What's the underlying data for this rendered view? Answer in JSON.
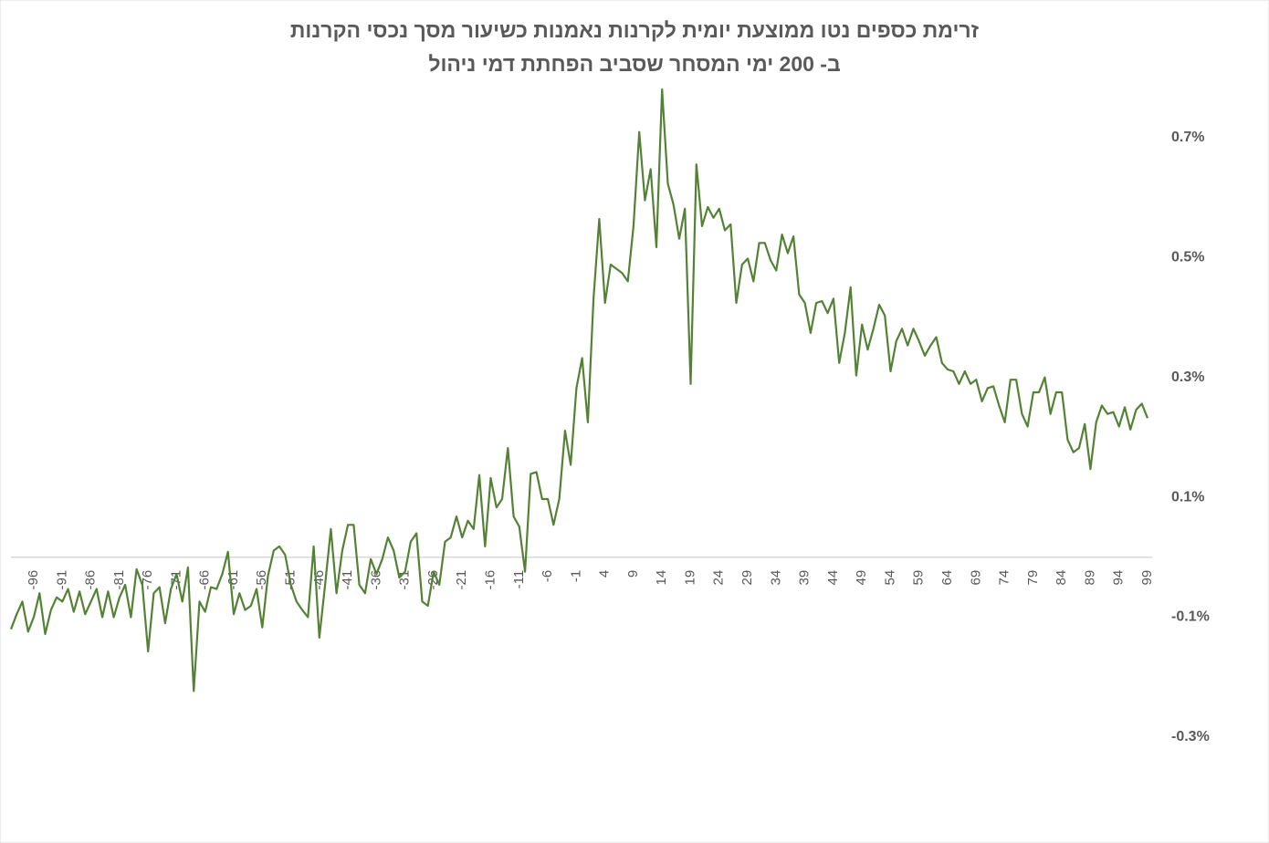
{
  "chart_data": {
    "type": "line",
    "title": [
      "זרימת כספים נטו ממוצעת יומית לקרנות נאמנות כשיעור מסך נכסי הקרנות",
      "ב- 200 ימי המסחר שסביב הפחתת דמי ניהול"
    ],
    "x": [
      -100,
      -99,
      -98,
      -97,
      -96,
      -95,
      -94,
      -93,
      -92,
      -91,
      -90,
      -89,
      -88,
      -87,
      -86,
      -85,
      -84,
      -83,
      -82,
      -81,
      -80,
      -79,
      -78,
      -77,
      -76,
      -75,
      -74,
      -73,
      -72,
      -71,
      -70,
      -69,
      -68,
      -67,
      -66,
      -65,
      -64,
      -63,
      -62,
      -61,
      -60,
      -59,
      -58,
      -57,
      -56,
      -55,
      -54,
      -53,
      -52,
      -51,
      -50,
      -49,
      -48,
      -47,
      -46,
      -45,
      -44,
      -43,
      -42,
      -41,
      -40,
      -39,
      -38,
      -37,
      -36,
      -35,
      -34,
      -33,
      -32,
      -31,
      -30,
      -29,
      -28,
      -27,
      -26,
      -25,
      -24,
      -23,
      -22,
      -21,
      -20,
      -19,
      -18,
      -17,
      -16,
      -15,
      -14,
      -13,
      -12,
      -11,
      -10,
      -9,
      -8,
      -7,
      -6,
      -5,
      -4,
      -3,
      -2,
      -1,
      0,
      1,
      2,
      3,
      4,
      5,
      6,
      7,
      8,
      9,
      10,
      11,
      12,
      13,
      14,
      15,
      16,
      17,
      18,
      19,
      20,
      21,
      22,
      23,
      24,
      25,
      26,
      27,
      28,
      29,
      30,
      31,
      32,
      33,
      34,
      35,
      36,
      37,
      38,
      39,
      40,
      41,
      42,
      43,
      44,
      45,
      46,
      47,
      48,
      49,
      50,
      51,
      52,
      53,
      54,
      55,
      56,
      57,
      58,
      59,
      60,
      61,
      62,
      63,
      64,
      65,
      66,
      67,
      68,
      69,
      70,
      71,
      72,
      73,
      74,
      75,
      76,
      77,
      78,
      79,
      80,
      81,
      82,
      83,
      84,
      85,
      86,
      87,
      88,
      89,
      90,
      91,
      92,
      93,
      94,
      95,
      96,
      97,
      98,
      99
    ],
    "series": [
      {
        "color": "#548235",
        "values": [
          -0.12,
          -0.095,
          -0.074,
          -0.124,
          -0.1,
          -0.06,
          -0.128,
          -0.088,
          -0.067,
          -0.074,
          -0.053,
          -0.091,
          -0.057,
          -0.095,
          -0.074,
          -0.053,
          -0.1,
          -0.057,
          -0.1,
          -0.067,
          -0.046,
          -0.1,
          -0.02,
          -0.046,
          -0.157,
          -0.06,
          -0.05,
          -0.11,
          -0.053,
          -0.028,
          -0.074,
          -0.017,
          -0.223,
          -0.074,
          -0.091,
          -0.05,
          -0.053,
          -0.028,
          0.009,
          -0.095,
          -0.06,
          -0.088,
          -0.081,
          -0.053,
          -0.117,
          -0.031,
          0.011,
          0.018,
          0.004,
          -0.046,
          -0.074,
          -0.088,
          -0.1,
          0.018,
          -0.134,
          -0.046,
          0.047,
          -0.06,
          0.011,
          0.054,
          0.054,
          -0.046,
          -0.06,
          -0.003,
          -0.028,
          -0.003,
          0.033,
          0.011,
          -0.034,
          -0.024,
          0.026,
          0.04,
          -0.074,
          -0.081,
          -0.024,
          -0.046,
          0.026,
          0.033,
          0.068,
          0.033,
          0.061,
          0.047,
          0.137,
          0.018,
          0.132,
          0.083,
          0.097,
          0.182,
          0.068,
          0.051,
          -0.024,
          0.139,
          0.142,
          0.097,
          0.097,
          0.054,
          0.097,
          0.211,
          0.154,
          0.282,
          0.332,
          0.225,
          0.431,
          0.564,
          0.424,
          0.488,
          0.481,
          0.474,
          0.46,
          0.552,
          0.709,
          0.595,
          0.647,
          0.517,
          0.78,
          0.623,
          0.588,
          0.531,
          0.581,
          0.289,
          0.655,
          0.552,
          0.584,
          0.566,
          0.581,
          0.545,
          0.555,
          0.424,
          0.488,
          0.498,
          0.46,
          0.524,
          0.524,
          0.495,
          0.478,
          0.538,
          0.507,
          0.535,
          0.438,
          0.424,
          0.374,
          0.424,
          0.427,
          0.407,
          0.431,
          0.324,
          0.374,
          0.45,
          0.303,
          0.388,
          0.346,
          0.381,
          0.421,
          0.403,
          0.31,
          0.36,
          0.381,
          0.353,
          0.381,
          0.36,
          0.336,
          0.353,
          0.367,
          0.324,
          0.313,
          0.31,
          0.289,
          0.31,
          0.289,
          0.296,
          0.26,
          0.282,
          0.285,
          0.253,
          0.225,
          0.296,
          0.296,
          0.239,
          0.218,
          0.275,
          0.275,
          0.3,
          0.239,
          0.275,
          0.275,
          0.196,
          0.175,
          0.182,
          0.222,
          0.147,
          0.225,
          0.253,
          0.239,
          0.242,
          0.218,
          0.25,
          0.213,
          0.246,
          0.256,
          0.232
        ]
      }
    ],
    "xlim": [
      -100,
      99
    ],
    "xticks": [
      -96,
      -91,
      -86,
      -81,
      -76,
      -71,
      -66,
      -61,
      -56,
      -51,
      -46,
      -41,
      -36,
      -31,
      -26,
      -21,
      -16,
      -11,
      -6,
      -1,
      4,
      9,
      14,
      19,
      24,
      29,
      34,
      39,
      44,
      49,
      54,
      59,
      64,
      69,
      74,
      79,
      84,
      89,
      94,
      99
    ],
    "ylim": [
      -0.3,
      0.78
    ],
    "yticks": [
      {
        "value": -0.3,
        "label": "-0.3%"
      },
      {
        "value": -0.1,
        "label": "-0.1%"
      },
      {
        "value": 0.1,
        "label": "0.1%"
      },
      {
        "value": 0.3,
        "label": "0.3%"
      },
      {
        "value": 0.5,
        "label": "0.5%"
      },
      {
        "value": 0.7,
        "label": "0.7%"
      }
    ],
    "grid": false
  }
}
